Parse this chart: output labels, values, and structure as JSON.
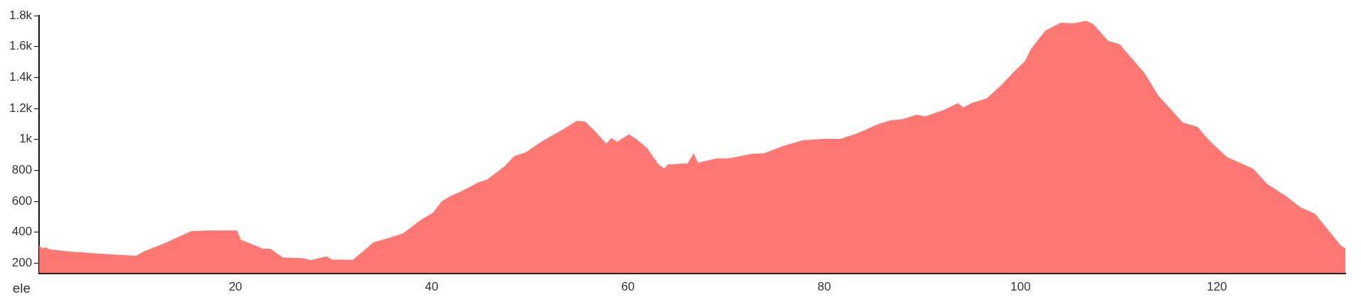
{
  "chart_data": {
    "type": "area",
    "ylabel": "ele",
    "x": [
      0,
      0.3,
      0.7,
      1.05,
      2.9,
      5.9,
      8.9,
      9.9,
      10.7,
      12.8,
      15.5,
      17.1,
      19.7,
      20.15,
      20.5,
      22.7,
      23.6,
      24.8,
      26.9,
      27.7,
      29.3,
      29.8,
      32.0,
      34.1,
      35.9,
      37.1,
      38.9,
      40.2,
      41.0,
      41.8,
      43.0,
      44.8,
      45.7,
      47.5,
      48.4,
      49.6,
      51.4,
      53.2,
      54.8,
      55.6,
      56.5,
      57.8,
      58.3,
      58.9,
      60.1,
      60.8,
      61.9,
      63.1,
      63.7,
      64.1,
      66.1,
      66.7,
      67.1,
      69.1,
      70.3,
      72.7,
      73.9,
      75.7,
      77.8,
      79.9,
      81.7,
      83.5,
      85.6,
      86.8,
      87.9,
      89.4,
      90.3,
      92.1,
      93.6,
      94.2,
      95.1,
      96.6,
      98.1,
      99.3,
      100.5,
      101.1,
      102.6,
      104.1,
      105.3,
      106.7,
      107.4,
      108.9,
      110.1,
      111.0,
      112.6,
      114.0,
      116.5,
      118.0,
      119.2,
      121.0,
      123.7,
      125.1,
      127.0,
      128.5,
      130.0,
      132.6,
      133.1
    ],
    "series": [
      {
        "color": "#ff7773",
        "values": [
          312,
          293,
          299,
          287,
          274,
          260,
          248,
          245,
          274,
          326,
          404,
          409,
          409,
          409,
          351,
          293,
          289,
          235,
          229,
          216,
          241,
          221,
          219,
          332,
          365,
          390,
          477,
          526,
          594,
          627,
          661,
          720,
          739,
          826,
          888,
          914,
          991,
          1055,
          1117,
          1113,
          1059,
          968,
          1005,
          981,
          1030,
          1001,
          943,
          836,
          807,
          836,
          842,
          904,
          846,
          875,
          875,
          904,
          908,
          952,
          991,
          1001,
          1001,
          1040,
          1098,
          1121,
          1127,
          1156,
          1146,
          1185,
          1230,
          1204,
          1233,
          1263,
          1350,
          1431,
          1505,
          1583,
          1703,
          1751,
          1747,
          1763,
          1742,
          1635,
          1612,
          1544,
          1427,
          1282,
          1107,
          1078,
          991,
          884,
          807,
          710,
          632,
          559,
          516,
          312,
          293
        ]
      }
    ],
    "xlim": [
      0,
      133.1
    ],
    "xticks": [
      20,
      40,
      60,
      80,
      100,
      120
    ],
    "ylim": [
      135,
      1800
    ],
    "yticks": [
      200,
      400,
      600,
      800,
      {
        "value": 1000,
        "label": "1k"
      },
      {
        "value": 1200,
        "label": "1.2k"
      },
      {
        "value": 1400,
        "label": "1.4k"
      },
      {
        "value": 1600,
        "label": "1.6k"
      },
      {
        "value": 1800,
        "label": "1.8k"
      }
    ],
    "grid": false,
    "legend": false
  }
}
